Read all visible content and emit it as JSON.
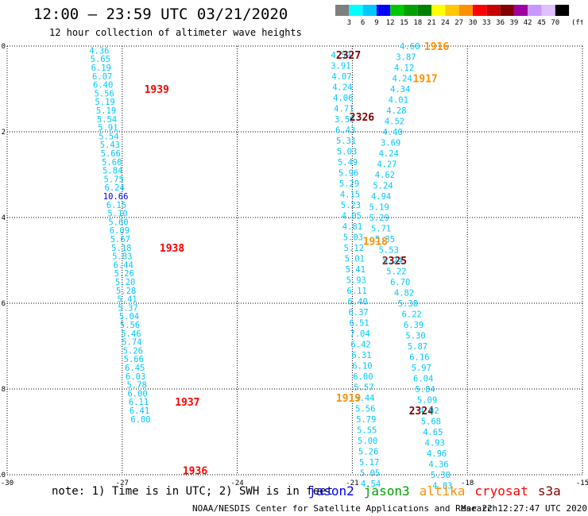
{
  "title": "12:00 – 23:59 UTC 03/21/2020",
  "subtitle": "12 hour collection of altimeter wave heights",
  "colorbar": {
    "labels": [
      "3",
      "6",
      "9",
      "12",
      "15",
      "18",
      "21",
      "24",
      "27",
      "30",
      "33",
      "36",
      "39",
      "42",
      "45",
      "70"
    ],
    "unit": "(ft)",
    "colors": [
      "#7f7f7f",
      "#00ffff",
      "#00c8ff",
      "#0000ff",
      "#00c800",
      "#00a000",
      "#008000",
      "#ffff00",
      "#ffc800",
      "#ff9000",
      "#ff0000",
      "#c80000",
      "#800000",
      "#a000a0",
      "#c896ff",
      "#e0c0ff",
      "#000000"
    ]
  },
  "note": "note: 1) Time is in UTC; 2) SWH is in feet",
  "legend": [
    {
      "label": "jason2",
      "color": "#0000ff"
    },
    {
      "label": "jason3",
      "color": "#00a000"
    },
    {
      "label": "altika",
      "color": "#ff9000"
    },
    {
      "label": "cryosat",
      "color": "#ff0000"
    },
    {
      "label": "s3a",
      "color": "#800000"
    }
  ],
  "footer": "NOAA/NESDIS Center for Satellite Applications and Research",
  "footer_date": "Mar 22 12:27:47 UTC 2020",
  "chart_data": {
    "type": "scatter",
    "xlim": [
      -30,
      -15
    ],
    "ylim": [
      -10,
      0
    ],
    "xticks": [
      -30,
      -27,
      -24,
      -21,
      -18,
      -15
    ],
    "yticks": [
      0,
      -2,
      -4,
      -6,
      -8,
      -10
    ],
    "grid": true,
    "tracks": [
      {
        "satellite": "cryosat",
        "color": "#ff0000",
        "time_labels": [
          {
            "text": "1939",
            "x": -26.1,
            "y": -1.0
          },
          {
            "text": "1938",
            "x": -25.7,
            "y": -4.7
          },
          {
            "text": "1937",
            "x": -25.3,
            "y": -8.3
          },
          {
            "text": "1936",
            "x": -25.1,
            "y": -9.9
          }
        ],
        "values_color": "#00c8ff",
        "points": [
          {
            "x": -27.6,
            "y": -0.1,
            "v": "4.36"
          },
          {
            "x": -27.57,
            "y": -0.3,
            "v": "5.65"
          },
          {
            "x": -27.55,
            "y": -0.5,
            "v": "6.19"
          },
          {
            "x": -27.52,
            "y": -0.7,
            "v": "6.07"
          },
          {
            "x": -27.5,
            "y": -0.9,
            "v": "6.40"
          },
          {
            "x": -27.47,
            "y": -1.1,
            "v": "5.56"
          },
          {
            "x": -27.45,
            "y": -1.3,
            "v": "5.19"
          },
          {
            "x": -27.42,
            "y": -1.5,
            "v": "5.19"
          },
          {
            "x": -27.4,
            "y": -1.7,
            "v": "5.54"
          },
          {
            "x": -27.37,
            "y": -1.9,
            "v": "5.91"
          },
          {
            "x": -27.35,
            "y": -2.1,
            "v": "5.54"
          },
          {
            "x": -27.32,
            "y": -2.3,
            "v": "5.43"
          },
          {
            "x": -27.3,
            "y": -2.5,
            "v": "5.66"
          },
          {
            "x": -27.27,
            "y": -2.7,
            "v": "5.60"
          },
          {
            "x": -27.25,
            "y": -2.9,
            "v": "5.84"
          },
          {
            "x": -27.22,
            "y": -3.1,
            "v": "5.75"
          },
          {
            "x": -27.2,
            "y": -3.3,
            "v": "6.24"
          },
          {
            "x": -27.17,
            "y": -3.5,
            "v": "10.66",
            "c": "#0000ff"
          },
          {
            "x": -27.15,
            "y": -3.7,
            "v": "6.15"
          },
          {
            "x": -27.12,
            "y": -3.9,
            "v": "5.10"
          },
          {
            "x": -27.1,
            "y": -4.1,
            "v": "5.60"
          },
          {
            "x": -27.07,
            "y": -4.3,
            "v": "6.09"
          },
          {
            "x": -27.05,
            "y": -4.5,
            "v": "5.67"
          },
          {
            "x": -27.02,
            "y": -4.7,
            "v": "5.18"
          },
          {
            "x": -27.0,
            "y": -4.9,
            "v": "5.83"
          },
          {
            "x": -26.97,
            "y": -5.1,
            "v": "6.44"
          },
          {
            "x": -26.95,
            "y": -5.3,
            "v": "5.26"
          },
          {
            "x": -26.92,
            "y": -5.5,
            "v": "5.20"
          },
          {
            "x": -26.9,
            "y": -5.7,
            "v": "5.28"
          },
          {
            "x": -26.87,
            "y": -5.9,
            "v": "5.41"
          },
          {
            "x": -26.85,
            "y": -6.1,
            "v": "5.37"
          },
          {
            "x": -26.82,
            "y": -6.3,
            "v": "5.04"
          },
          {
            "x": -26.8,
            "y": -6.5,
            "v": "5.56"
          },
          {
            "x": -26.77,
            "y": -6.7,
            "v": "5.46"
          },
          {
            "x": -26.75,
            "y": -6.9,
            "v": "5.74"
          },
          {
            "x": -26.72,
            "y": -7.1,
            "v": "5.26"
          },
          {
            "x": -26.7,
            "y": -7.3,
            "v": "5.66"
          },
          {
            "x": -26.67,
            "y": -7.5,
            "v": "6.45"
          },
          {
            "x": -26.65,
            "y": -7.7,
            "v": "6.03"
          },
          {
            "x": -26.62,
            "y": -7.9,
            "v": "5.78"
          },
          {
            "x": -26.6,
            "y": -8.1,
            "v": "6.00"
          },
          {
            "x": -26.57,
            "y": -8.3,
            "v": "6.11"
          },
          {
            "x": -26.55,
            "y": -8.5,
            "v": "6.41"
          },
          {
            "x": -26.52,
            "y": -8.7,
            "v": "6.00"
          }
        ]
      },
      {
        "satellite": "s3a",
        "color": "#800000",
        "time_labels": [
          {
            "text": "2327",
            "x": -21.1,
            "y": -0.2
          },
          {
            "text": "2326",
            "x": -20.75,
            "y": -1.65
          },
          {
            "text": "2325",
            "x": -19.9,
            "y": -5.0
          },
          {
            "text": "2324",
            "x": -19.2,
            "y": -8.5
          }
        ],
        "values_color": "#00c8ff",
        "points": [
          {
            "x": -21.3,
            "y": -0.2,
            "v": "4.59"
          },
          {
            "x": -21.3,
            "y": -0.45,
            "v": "3.91"
          },
          {
            "x": -21.28,
            "y": -0.7,
            "v": "4.07"
          },
          {
            "x": -21.26,
            "y": -0.95,
            "v": "4.24"
          },
          {
            "x": -21.24,
            "y": -1.2,
            "v": "4.06"
          },
          {
            "x": -21.22,
            "y": -1.45,
            "v": "4.71"
          },
          {
            "x": -21.2,
            "y": -1.7,
            "v": "3.50"
          },
          {
            "x": -21.18,
            "y": -1.95,
            "v": "6.43"
          },
          {
            "x": -21.16,
            "y": -2.2,
            "v": "5.31"
          },
          {
            "x": -21.14,
            "y": -2.45,
            "v": "5.03"
          },
          {
            "x": -21.12,
            "y": -2.7,
            "v": "5.49"
          },
          {
            "x": -21.1,
            "y": -2.95,
            "v": "5.96"
          },
          {
            "x": -21.08,
            "y": -3.2,
            "v": "5.29"
          },
          {
            "x": -21.06,
            "y": -3.45,
            "v": "4.15"
          },
          {
            "x": -21.04,
            "y": -3.7,
            "v": "5.23"
          },
          {
            "x": -21.02,
            "y": -3.95,
            "v": "4.05"
          },
          {
            "x": -21.0,
            "y": -4.2,
            "v": "4.81"
          },
          {
            "x": -20.98,
            "y": -4.45,
            "v": "5.03"
          },
          {
            "x": -20.96,
            "y": -4.7,
            "v": "5.12"
          },
          {
            "x": -20.94,
            "y": -4.95,
            "v": "5.01"
          },
          {
            "x": -20.92,
            "y": -5.2,
            "v": "5.41"
          },
          {
            "x": -20.9,
            "y": -5.45,
            "v": "5.93"
          },
          {
            "x": -20.88,
            "y": -5.7,
            "v": "6.11"
          },
          {
            "x": -20.86,
            "y": -5.95,
            "v": "6.40"
          },
          {
            "x": -20.84,
            "y": -6.2,
            "v": "6.37"
          },
          {
            "x": -20.82,
            "y": -6.45,
            "v": "6.51"
          },
          {
            "x": -20.8,
            "y": -6.7,
            "v": "7.04"
          },
          {
            "x": -20.78,
            "y": -6.95,
            "v": "6.42"
          },
          {
            "x": -20.76,
            "y": -7.2,
            "v": "6.31"
          },
          {
            "x": -20.74,
            "y": -7.45,
            "v": "6.10"
          },
          {
            "x": -20.72,
            "y": -7.7,
            "v": "6.00"
          },
          {
            "x": -20.7,
            "y": -7.95,
            "v": "5.57"
          },
          {
            "x": -20.68,
            "y": -8.2,
            "v": "5.44"
          },
          {
            "x": -20.66,
            "y": -8.45,
            "v": "5.56"
          },
          {
            "x": -20.64,
            "y": -8.7,
            "v": "5.79"
          },
          {
            "x": -20.62,
            "y": -8.95,
            "v": "5.55"
          },
          {
            "x": -20.6,
            "y": -9.2,
            "v": "5.00"
          },
          {
            "x": -20.58,
            "y": -9.45,
            "v": "5.26"
          },
          {
            "x": -20.56,
            "y": -9.7,
            "v": "5.17"
          },
          {
            "x": -20.54,
            "y": -9.95,
            "v": "5.05"
          },
          {
            "x": -20.52,
            "y": -10.2,
            "v": "4.54"
          }
        ]
      },
      {
        "satellite": "altika",
        "color": "#ff9000",
        "time_labels": [
          {
            "text": "1916",
            "x": -18.8,
            "y": 0.0
          },
          {
            "text": "1917",
            "x": -19.1,
            "y": -0.75
          },
          {
            "text": "1918",
            "x": -20.4,
            "y": -4.55
          },
          {
            "text": "1919",
            "x": -21.1,
            "y": -8.2
          }
        ],
        "values_color": "#00c8ff",
        "points": [
          {
            "x": -19.5,
            "y": 0.0,
            "v": "4.60"
          },
          {
            "x": -19.6,
            "y": -0.25,
            "v": "3.87"
          },
          {
            "x": -19.65,
            "y": -0.5,
            "v": "4.12"
          },
          {
            "x": -19.7,
            "y": -0.75,
            "v": "4.24"
          },
          {
            "x": -19.75,
            "y": -1.0,
            "v": "4.34"
          },
          {
            "x": -19.8,
            "y": -1.25,
            "v": "4.01"
          },
          {
            "x": -19.85,
            "y": -1.5,
            "v": "4.28"
          },
          {
            "x": -19.9,
            "y": -1.75,
            "v": "4.52"
          },
          {
            "x": -19.95,
            "y": -2.0,
            "v": "4.40"
          },
          {
            "x": -20.0,
            "y": -2.25,
            "v": "3.69"
          },
          {
            "x": -20.05,
            "y": -2.5,
            "v": "4.24"
          },
          {
            "x": -20.1,
            "y": -2.75,
            "v": "4.27"
          },
          {
            "x": -20.15,
            "y": -3.0,
            "v": "4.62"
          },
          {
            "x": -20.2,
            "y": -3.25,
            "v": "5.24"
          },
          {
            "x": -20.25,
            "y": -3.5,
            "v": "4.94"
          },
          {
            "x": -20.3,
            "y": -3.75,
            "v": "5.19"
          },
          {
            "x": -20.3,
            "y": -4.0,
            "v": "5.29"
          },
          {
            "x": -20.25,
            "y": -4.25,
            "v": "5.71"
          },
          {
            "x": -20.15,
            "y": -4.5,
            "v": "5.35"
          },
          {
            "x": -20.05,
            "y": -4.75,
            "v": "5.53"
          },
          {
            "x": -19.95,
            "y": -5.0,
            "v": "5.24"
          },
          {
            "x": -19.85,
            "y": -5.25,
            "v": "5.22"
          },
          {
            "x": -19.75,
            "y": -5.5,
            "v": "6.70"
          },
          {
            "x": -19.65,
            "y": -5.75,
            "v": "4.82"
          },
          {
            "x": -19.55,
            "y": -6.0,
            "v": "5.38"
          },
          {
            "x": -19.45,
            "y": -6.25,
            "v": "6.22"
          },
          {
            "x": -19.4,
            "y": -6.5,
            "v": "6.39"
          },
          {
            "x": -19.35,
            "y": -6.75,
            "v": "5.30"
          },
          {
            "x": -19.3,
            "y": -7.0,
            "v": "5.87"
          },
          {
            "x": -19.25,
            "y": -7.25,
            "v": "6.16"
          },
          {
            "x": -19.2,
            "y": -7.5,
            "v": "5.97"
          },
          {
            "x": -19.15,
            "y": -7.75,
            "v": "6.04"
          },
          {
            "x": -19.1,
            "y": -8.0,
            "v": "5.84"
          },
          {
            "x": -19.05,
            "y": -8.25,
            "v": "5.09"
          },
          {
            "x": -19.0,
            "y": -8.5,
            "v": "4.92"
          },
          {
            "x": -18.95,
            "y": -8.75,
            "v": "5.68"
          },
          {
            "x": -18.9,
            "y": -9.0,
            "v": "4.65"
          },
          {
            "x": -18.85,
            "y": -9.25,
            "v": "4.93"
          },
          {
            "x": -18.8,
            "y": -9.5,
            "v": "4.96"
          },
          {
            "x": -18.75,
            "y": -9.75,
            "v": "4.36"
          },
          {
            "x": -18.7,
            "y": -10.0,
            "v": "5.30"
          },
          {
            "x": -18.65,
            "y": -10.25,
            "v": "4.83"
          }
        ]
      }
    ]
  }
}
